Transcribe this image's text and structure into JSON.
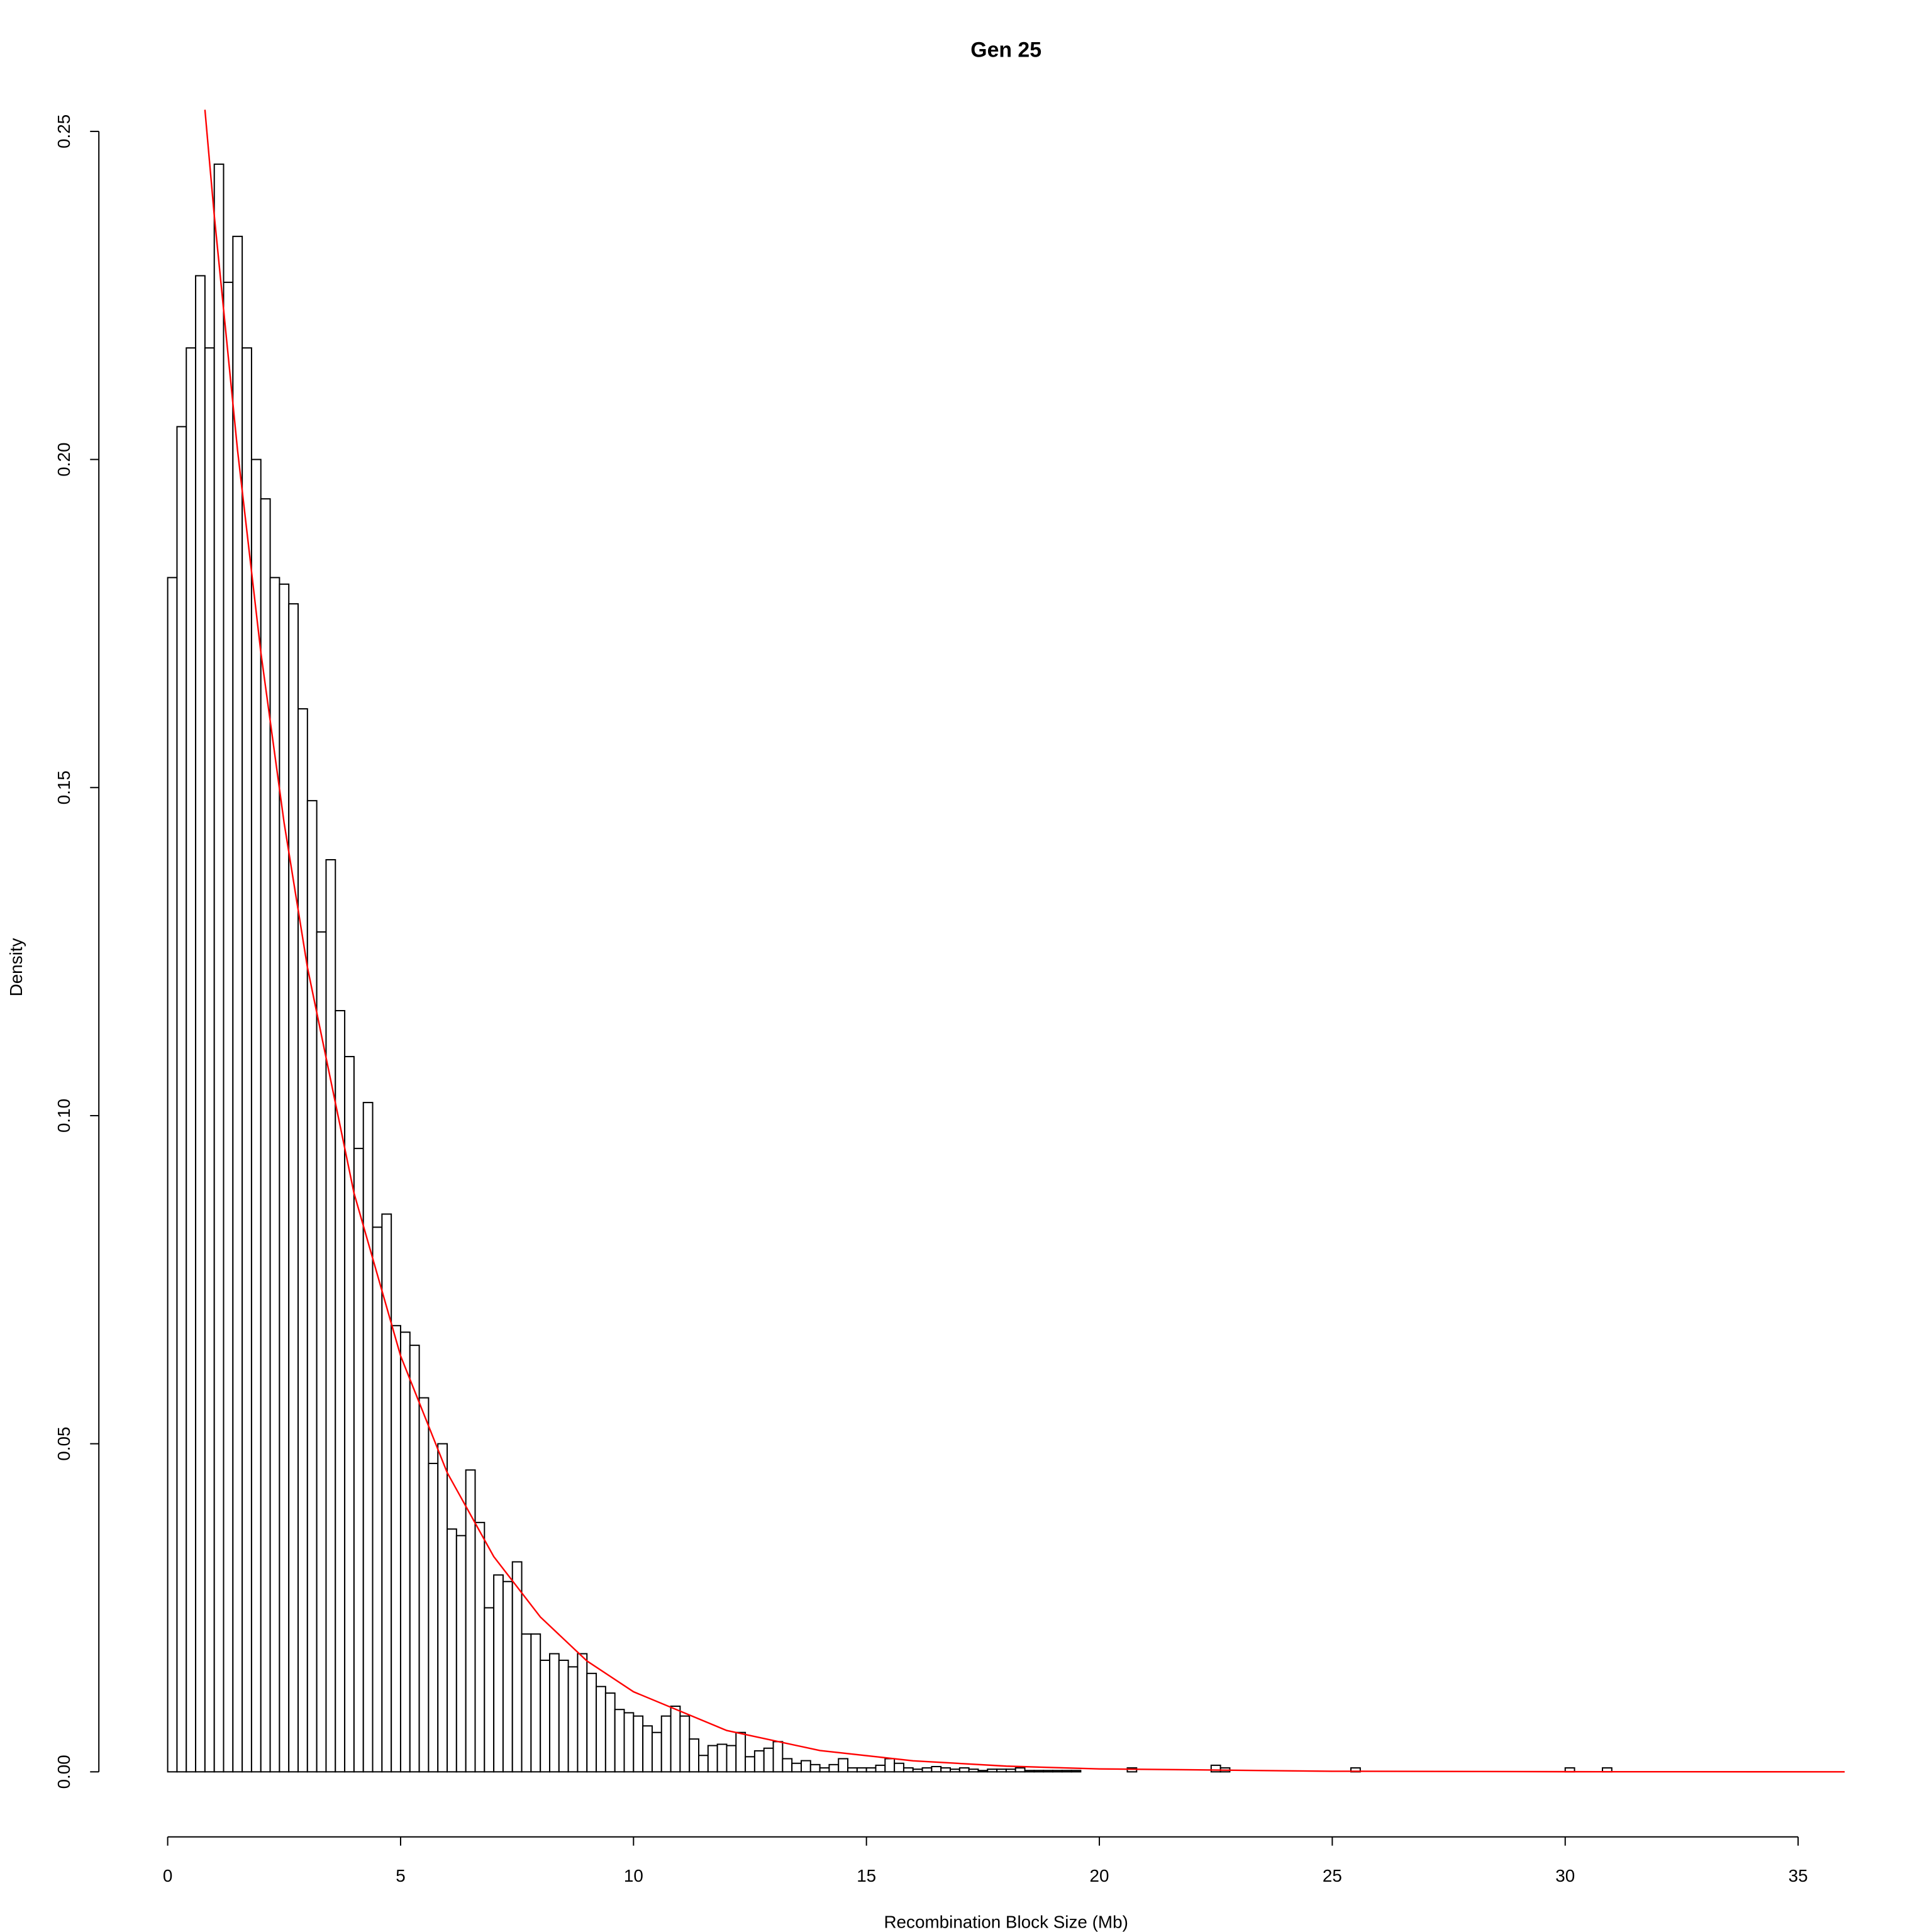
{
  "chart_data": {
    "type": "histogram",
    "title": "Gen 25",
    "xlabel": "Recombination Block Size (Mb)",
    "ylabel": "Density",
    "bins": [
      0,
      0.2,
      0.4,
      0.6,
      0.8,
      1,
      1.2,
      1.4,
      1.6,
      1.8,
      2,
      2.2,
      2.4,
      2.6,
      2.8,
      3,
      3.2,
      3.4,
      3.6,
      3.8,
      4,
      4.2,
      4.4,
      4.6,
      4.8,
      5,
      5.2,
      5.4,
      5.6,
      5.8,
      6,
      6.2,
      6.4,
      6.6,
      6.8,
      7,
      7.2,
      7.4,
      7.6,
      7.8,
      8,
      8.2,
      8.4,
      8.6,
      8.8,
      9,
      9.2,
      9.4,
      9.6,
      9.8,
      10,
      10.2,
      10.4,
      10.6,
      10.8,
      11,
      11.2,
      11.4,
      11.6,
      11.8,
      12,
      12.2,
      12.4,
      12.6,
      12.8,
      13,
      13.2,
      13.4,
      13.6,
      13.8,
      14,
      14.2,
      14.4,
      14.6,
      14.8,
      15,
      15.2,
      15.4,
      15.6,
      15.8,
      16,
      16.2,
      16.4,
      16.6,
      16.8,
      17,
      17.2,
      17.4,
      17.6,
      17.8,
      18,
      18.2,
      18.4,
      18.6,
      18.8,
      19,
      19.2,
      19.4,
      19.6,
      19.8,
      20,
      20.2,
      20.4,
      20.6,
      20.8,
      21,
      21.2,
      21.4,
      21.6,
      21.8,
      22,
      22.2,
      22.4,
      22.6,
      22.8,
      23,
      23.2,
      23.4,
      23.6,
      23.8,
      24,
      24.2,
      24.4,
      24.6,
      24.8,
      25,
      25.2,
      25.4,
      25.6,
      25.8,
      26,
      26.2,
      26.4,
      26.6,
      26.8,
      27,
      27.2,
      27.4,
      27.6,
      27.8,
      28,
      28.2,
      28.4,
      28.6,
      28.8,
      29,
      29.2,
      29.4,
      29.6,
      29.8,
      30,
      30.2,
      30.4,
      30.6,
      30.8,
      31
    ],
    "values": [
      0.182,
      0.205,
      0.217,
      0.228,
      0.217,
      0.245,
      0.227,
      0.234,
      0.217,
      0.2,
      0.194,
      0.182,
      0.181,
      0.178,
      0.162,
      0.148,
      0.128,
      0.139,
      0.116,
      0.109,
      0.095,
      0.102,
      0.083,
      0.085,
      0.068,
      0.067,
      0.065,
      0.057,
      0.047,
      0.05,
      0.037,
      0.036,
      0.046,
      0.038,
      0.025,
      0.03,
      0.029,
      0.032,
      0.021,
      0.021,
      0.017,
      0.018,
      0.017,
      0.016,
      0.018,
      0.015,
      0.013,
      0.012,
      0.0095,
      0.009,
      0.0085,
      0.007,
      0.006,
      0.0085,
      0.01,
      0.0085,
      0.005,
      0.0025,
      0.004,
      0.0042,
      0.004,
      0.006,
      0.0023,
      0.0032,
      0.0036,
      0.0046,
      0.002,
      0.0013,
      0.0017,
      0.0011,
      0.0006,
      0.0011,
      0.002,
      0.0006,
      0.0006,
      0.0006,
      0.001,
      0.002,
      0.0013,
      0.0006,
      0.0004,
      0.0006,
      0.0008,
      0.0006,
      0.0004,
      0.0006,
      0.0004,
      0.0002,
      0.0004,
      0.0004,
      0.0004,
      0.0006,
      0.0002,
      0.0002,
      0.0002,
      0.0002,
      0.0002,
      0.0002,
      0,
      0,
      0,
      0,
      0,
      0.0006,
      0,
      0,
      0,
      0,
      0,
      0,
      0,
      0,
      0.001,
      0.0006,
      0,
      0,
      0,
      0,
      0,
      0,
      0,
      0,
      0,
      0,
      0,
      0,
      0,
      0.0006,
      0,
      0,
      0,
      0,
      0,
      0,
      0,
      0,
      0,
      0,
      0,
      0,
      0,
      0,
      0,
      0,
      0,
      0,
      0,
      0,
      0,
      0,
      0.0006,
      0,
      0,
      0,
      0.0006
    ],
    "color": "#ffffff",
    "edgecolor": "#000000",
    "curve": {
      "color": "#ff0000",
      "x": [
        0.8,
        1,
        1.5,
        2,
        2.5,
        3,
        4,
        5,
        6,
        7,
        8,
        9,
        10,
        12,
        14,
        16,
        18,
        20,
        25,
        30,
        36
      ],
      "y": [
        0.2533,
        0.2372,
        0.2014,
        0.1706,
        0.1446,
        0.1226,
        0.0882,
        0.0634,
        0.0456,
        0.0328,
        0.0236,
        0.0169,
        0.0122,
        0.0063,
        0.00325,
        0.00168,
        0.00087,
        0.00045,
        9e-05,
        2e-05,
        2e-06
      ]
    },
    "xlim": [
      0,
      35
    ],
    "xticks": [
      0,
      5,
      10,
      15,
      20,
      25,
      30,
      35
    ],
    "ylim": [
      0,
      0.25
    ],
    "yticks": [
      {
        "value": 0,
        "label": "0.00"
      },
      0.05,
      {
        "value": 0.1,
        "label": "0.10"
      },
      0.15,
      {
        "value": 0.2,
        "label": "0.20"
      },
      0.25
    ]
  }
}
